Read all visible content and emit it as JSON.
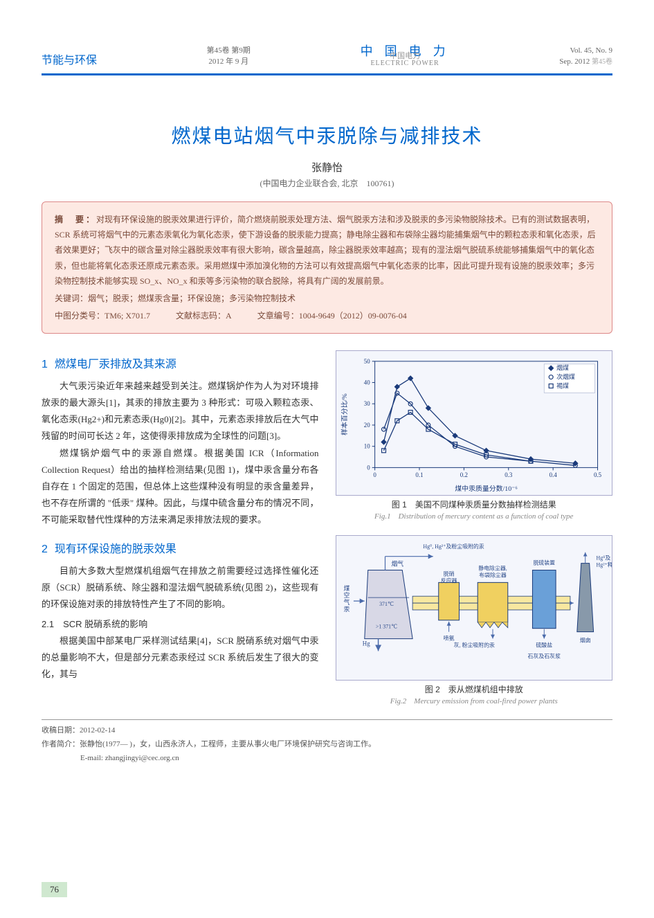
{
  "header": {
    "section_label": "节能与环保",
    "volume_issue_cn": "第45卷 第9期",
    "date_cn": "2012 年 9 月",
    "journal_cn": "中 国 电 力",
    "journal_en": "ELECTRIC POWER",
    "journal_overlay": "中国电力",
    "volume_issue_en": "Vol. 45, No. 9",
    "date_en": "Sep. 2012",
    "right_overlay": "第45卷"
  },
  "title": "燃煤电站烟气中汞脱除与减排技术",
  "author": "张静怡",
  "affiliation": "(中国电力企业联合会, 北京　100761)",
  "abstract": {
    "label": "摘　要：",
    "text": "对现有环保设施的脱汞效果进行评价，简介燃烧前脱汞处理方法、烟气脱汞方法和涉及脱汞的多污染物脱除技术。已有的测试数据表明，SCR 系统可将烟气中的元素态汞氧化为氧化态汞，使下游设备的脱汞能力提高；静电除尘器和布袋除尘器均能捕集烟气中的颗粒态汞和氧化态汞，后者效果更好；飞灰中的碳含量对除尘器脱汞效率有很大影响，碳含量越高，除尘器脱汞效率越高；现有的湿法烟气脱硫系统能够捕集烟气中的氧化态汞，但也能将氧化态汞还原成元素态汞。采用燃煤中添加溴化物的方法可以有效提高烟气中氧化态汞的比率，因此可提升现有设施的脱汞效率；多污染物控制技术能够实现 SO_x、NO_x 和汞等多污染物的联合脱除，将具有广阔的发展前景。",
    "keywords_label": "关键词：",
    "keywords": "烟气；脱汞；燃煤汞含量；环保设施；多污染物控制技术",
    "clc_label": "中图分类号：",
    "clc": "TM6; X701.7",
    "doc_code_label": "文献标志码：",
    "doc_code": "A",
    "article_id_label": "文章编号：",
    "article_id": "1004-9649（2012）09-0076-04"
  },
  "sections": {
    "s1": {
      "num": "1",
      "title": "燃煤电厂汞排放及其来源"
    },
    "s1p1": "大气汞污染近年来越来越受到关注。燃煤锅炉作为人为对环境排放汞的最大源头[1]，其汞的排放主要为 3 种形式：可吸入颗粒态汞、氧化态汞(Hg2+)和元素态汞(Hg0)[2]。其中，元素态汞排放后在大气中残留的时间可长达 2 年，这使得汞排放成为全球性的问题[3]。",
    "s1p2": "燃煤锅炉烟气中的汞源自燃煤。根据美国 ICR（Information Collection Request）给出的抽样检测结果(见图 1)，煤中汞含量分布各自存在 1 个固定的范围，但总体上这些煤种没有明显的汞含量差异，也不存在所谓的 \"低汞\" 煤种。因此，与煤中硫含量分布的情况不同，不可能采取替代性煤种的方法来满足汞排放法规的要求。",
    "s2": {
      "num": "2",
      "title": "现有环保设施的脱汞效果"
    },
    "s2p1": "目前大多数大型燃煤机组烟气在排放之前需要经过选择性催化还原（SCR）脱硝系统、除尘器和湿法烟气脱硫系统(见图 2)，这些现有的环保设施对汞的排放特性产生了不同的影响。",
    "s2sub1": "2.1　SCR 脱硝系统的影响",
    "s2p2": "根据美国中部某电厂采样测试结果[4]，SCR 脱硝系统对烟气中汞的总量影响不大，但是部分元素态汞经过 SCR 系统后发生了很大的变化，其与"
  },
  "fig1": {
    "caption_cn": "图 1　美国不同煤种汞质量分数抽样检测结果",
    "caption_en": "Fig.1　Distribution of mercury content as a function of coal type",
    "xlabel": "煤中汞质量分数/10⁻⁶",
    "ylabel": "样本百分比/%",
    "xlim": [
      0,
      0.5
    ],
    "ylim": [
      0,
      50
    ],
    "xticks": [
      0,
      0.1,
      0.2,
      0.3,
      0.4,
      0.5
    ],
    "yticks": [
      0,
      10,
      20,
      30,
      40,
      50
    ],
    "series": [
      {
        "name": "烟煤",
        "marker": "diamond",
        "color": "#1a3a7a",
        "x": [
          0.02,
          0.05,
          0.08,
          0.12,
          0.18,
          0.25,
          0.35,
          0.45
        ],
        "y": [
          12,
          38,
          42,
          28,
          15,
          8,
          4,
          2
        ]
      },
      {
        "name": "次烟煤",
        "marker": "circle",
        "color": "#1a3a7a",
        "x": [
          0.02,
          0.05,
          0.08,
          0.12,
          0.18,
          0.25,
          0.35,
          0.45
        ],
        "y": [
          18,
          35,
          30,
          20,
          10,
          5,
          3,
          1
        ]
      },
      {
        "name": "褐煤",
        "marker": "square",
        "color": "#1a3a7a",
        "x": [
          0.02,
          0.05,
          0.08,
          0.12,
          0.18,
          0.25,
          0.35
        ],
        "y": [
          8,
          22,
          26,
          18,
          11,
          6,
          3
        ]
      }
    ],
    "bg": "#f4f6fc",
    "grid": "#b8c0d8",
    "axis": "#1a3a7a",
    "tick_font": 9,
    "label_font": 10
  },
  "fig2": {
    "caption_cn": "图 2　汞从燃煤机组中排放",
    "caption_en": "Fig.2　Mercury emission from coal-fired power plants",
    "labels": {
      "coal_air": "煤\n空\n气\n汞",
      "boiler": "",
      "flue_gas": "烟气",
      "hg_top": "Hg⁰, Hg²⁺及粉尘吸附的汞",
      "temp1": "371℃",
      "temp2": ">1 371℃",
      "hg_arrow": "Hg",
      "scr": "脱硝\n反应器",
      "nh3": "喷氨",
      "esp": "静电除尘器,\n布袋除尘器",
      "ash": "灰, 粉尘吸附的汞",
      "fgd": "脱硫装置",
      "stack": "烟囱",
      "stack_out": "Hg⁰及\nHg²⁺释放",
      "limestone": "石灰及石灰浆",
      "sulfate": "硫酸盐"
    },
    "colors": {
      "boiler": "#d8d8e6",
      "scr": "#f0d060",
      "esp": "#f0d060",
      "fgd": "#6aa0d8",
      "stack": "#8899aa",
      "line": "#1a3a7a",
      "text": "#2a4a8a",
      "arrow": "#4a6aaa"
    }
  },
  "footer": {
    "received_label": "收稿日期：",
    "received": "2012-02-14",
    "bio_label": "作者简介：",
    "bio": "张静怡(1977— )，女，山西永济人，工程师，主要从事火电厂环境保护研究与咨询工作。",
    "email_label": "E-mail: ",
    "email": "zhangjingyi@cec.org.cn"
  },
  "page_num": "76"
}
